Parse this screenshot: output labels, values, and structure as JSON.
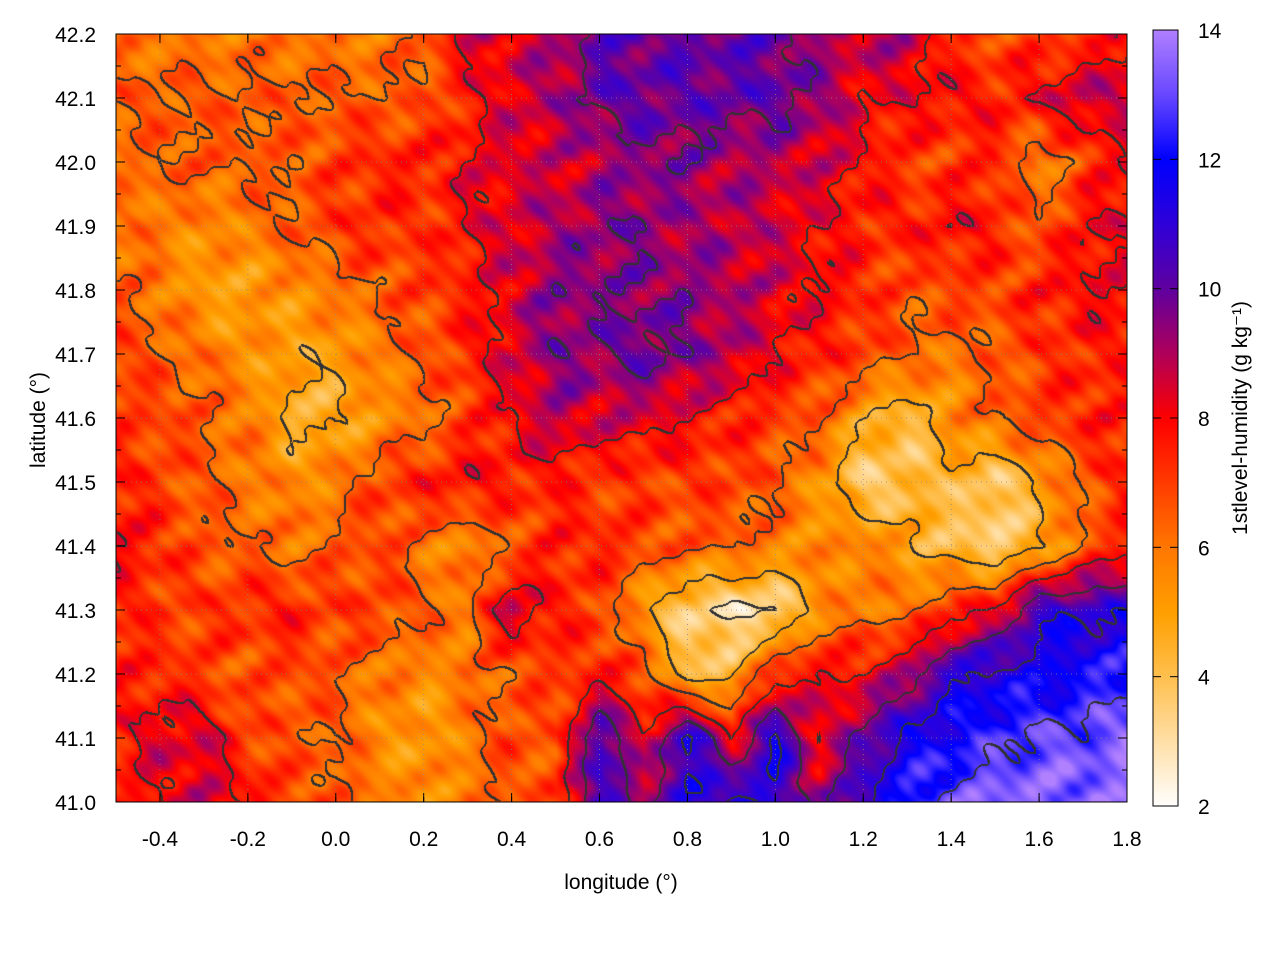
{
  "chart_data": {
    "type": "heatmap",
    "title": "",
    "xlabel": "longitude (°)",
    "ylabel": "latitude (°)",
    "colorbar_label": "1stlevel-humidity (g kg⁻¹)",
    "xlim": [
      -0.5,
      1.8
    ],
    "ylim": [
      41.0,
      42.2
    ],
    "clim": [
      2,
      14
    ],
    "x_ticks": [
      "-0.4",
      "-0.2",
      "0.0",
      "0.2",
      "0.4",
      "0.6",
      "0.8",
      "1.0",
      "1.2",
      "1.4",
      "1.6",
      "1.8"
    ],
    "y_ticks": [
      "41.0",
      "41.1",
      "41.2",
      "41.3",
      "41.4",
      "41.5",
      "41.6",
      "41.7",
      "41.8",
      "41.9",
      "42.0",
      "42.1",
      "42.2"
    ],
    "colorbar_ticks": [
      "2",
      "4",
      "6",
      "8",
      "10",
      "12",
      "14"
    ],
    "grid": true,
    "contours": true,
    "colormap": {
      "2": "#ffffff",
      "3": "#ffe0a8",
      "4": "#ffc050",
      "5": "#ffa000",
      "6": "#ff7800",
      "7": "#ff3c00",
      "8": "#ff0000",
      "9": "#b0005a",
      "10": "#6000a0",
      "11": "#3000d8",
      "12": "#0000ff",
      "13": "#6848ff",
      "14": "#b080ff"
    },
    "x": [
      -0.5,
      -0.4,
      -0.3,
      -0.2,
      -0.1,
      0.0,
      0.1,
      0.2,
      0.3,
      0.4,
      0.5,
      0.6,
      0.7,
      0.8,
      0.9,
      1.0,
      1.1,
      1.2,
      1.3,
      1.4,
      1.5,
      1.6,
      1.7,
      1.8
    ],
    "y": [
      42.2,
      42.1,
      42.0,
      41.9,
      41.8,
      41.7,
      41.6,
      41.5,
      41.4,
      41.3,
      41.2,
      41.1,
      41.0
    ],
    "z": [
      [
        6,
        6,
        6,
        6,
        6,
        6,
        6,
        6.5,
        8.5,
        8.5,
        9,
        10,
        10,
        10,
        10,
        10,
        9,
        9,
        9,
        7,
        7,
        7,
        7,
        8
      ],
      [
        6.5,
        6.5,
        6.5,
        6.5,
        6.5,
        6.5,
        6.5,
        6.5,
        7.5,
        8.5,
        9,
        10,
        10,
        10,
        10,
        10,
        9.5,
        8,
        8,
        8,
        7.5,
        8,
        9,
        8.5
      ],
      [
        6,
        6.5,
        6.5,
        6.5,
        6.5,
        7,
        7.5,
        7.5,
        8,
        8.5,
        8.5,
        9,
        9.5,
        9.5,
        9,
        9,
        8.5,
        8,
        7,
        7,
        7.5,
        5.5,
        7,
        8
      ],
      [
        6,
        6,
        5.5,
        6,
        6.5,
        7,
        7.5,
        7,
        8,
        8.5,
        9,
        9.5,
        9.5,
        9,
        9,
        8.5,
        8,
        7.5,
        7.5,
        8,
        7.5,
        6.5,
        8,
        8
      ],
      [
        6.5,
        6,
        5,
        5,
        5.5,
        6,
        6.5,
        7,
        7.5,
        8.5,
        9.5,
        9.5,
        9.5,
        9.5,
        9,
        8.5,
        8,
        7.5,
        6.5,
        7,
        7,
        7.5,
        8,
        8
      ],
      [
        7,
        6.5,
        6,
        5.5,
        5,
        5,
        6,
        6.5,
        7.5,
        8.5,
        9.5,
        9.5,
        10,
        9.5,
        9,
        8,
        7.5,
        7,
        6.5,
        6,
        6.5,
        7,
        7.5,
        7.5
      ],
      [
        7,
        7,
        6.5,
        6,
        4.5,
        4.5,
        5.5,
        6,
        7,
        8,
        9,
        8.5,
        8.5,
        8,
        7.5,
        7,
        6.5,
        5,
        4,
        5.5,
        6.5,
        7,
        7.5,
        7.5
      ],
      [
        7.5,
        7,
        6.5,
        6,
        5.5,
        6,
        7,
        7.5,
        8,
        7.5,
        7.5,
        7,
        7,
        7,
        7,
        6.5,
        5.5,
        3.5,
        4,
        4.5,
        3.5,
        5,
        6.5,
        7.5
      ],
      [
        8,
        7.5,
        6.5,
        6.5,
        6,
        6.5,
        7,
        6,
        5.5,
        6.5,
        7.5,
        7.5,
        7,
        6.5,
        6.5,
        6,
        5.5,
        6,
        5,
        4,
        3.5,
        4.5,
        6.5,
        7.5
      ],
      [
        7.5,
        7,
        7,
        7.5,
        7.5,
        7,
        7,
        6.5,
        6,
        9,
        7.5,
        7,
        5,
        3.5,
        3,
        3,
        5.5,
        6,
        6,
        7.5,
        8,
        11,
        11,
        11
      ],
      [
        7.5,
        7.5,
        7,
        6.5,
        7,
        6.5,
        6,
        5.5,
        6,
        6.5,
        7,
        7.5,
        7,
        4,
        4.5,
        7.5,
        8,
        8,
        9,
        11,
        11.5,
        11.5,
        12,
        12.5
      ],
      [
        7.5,
        8.5,
        8.5,
        7,
        6.5,
        6.5,
        5.5,
        5,
        6,
        7,
        6.5,
        11,
        8,
        11.5,
        8,
        11.5,
        8,
        10,
        11.5,
        12,
        12.5,
        13,
        13,
        13.5
      ],
      [
        7.5,
        8,
        8.5,
        8,
        7,
        6.5,
        6,
        5.5,
        6,
        6.5,
        7,
        11,
        9,
        11,
        11.5,
        11,
        9,
        11,
        12.5,
        13,
        13.5,
        13.5,
        13.5,
        13.5
      ]
    ]
  }
}
